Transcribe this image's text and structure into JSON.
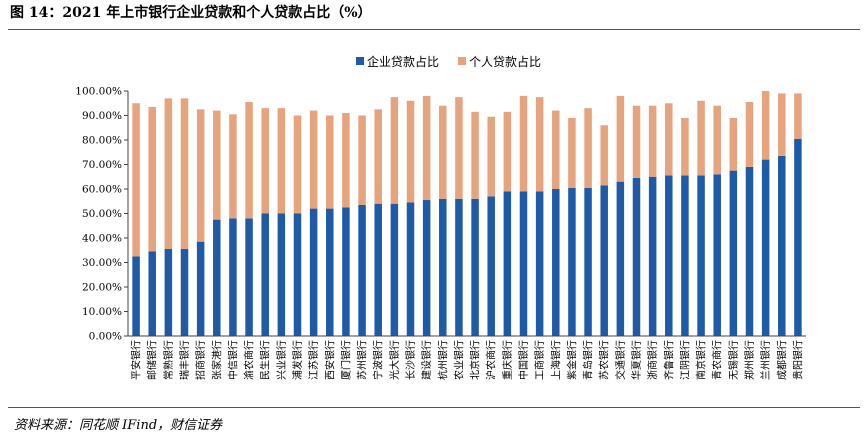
{
  "title": "图 14：2021 年上市银行企业贷款和个人贷款占比（%）",
  "source": "资料来源：同花顺 IFind，财信证券",
  "chart_data": {
    "type": "bar",
    "stacked": true,
    "title": "",
    "xlabel": "",
    "ylabel": "",
    "ylim": [
      0,
      100
    ],
    "yticks": [
      "0.00%",
      "10.00%",
      "20.00%",
      "30.00%",
      "40.00%",
      "50.00%",
      "60.00%",
      "70.00%",
      "80.00%",
      "90.00%",
      "100.00%"
    ],
    "legend_position": "top-center",
    "categories": [
      "平安银行",
      "邮储银行",
      "常熟银行",
      "瑞丰银行",
      "招商银行",
      "张家港行",
      "中信银行",
      "渝农商行",
      "民生银行",
      "兴业银行",
      "浦发银行",
      "江苏银行",
      "西安银行",
      "厦门银行",
      "苏州银行",
      "宁波银行",
      "光大银行",
      "长沙银行",
      "建设银行",
      "杭州银行",
      "农业银行",
      "北京银行",
      "沪农商行",
      "重庆银行",
      "中国银行",
      "工商银行",
      "上海银行",
      "紫金银行",
      "青岛银行",
      "苏农银行",
      "交通银行",
      "华夏银行",
      "浙商银行",
      "齐鲁银行",
      "江阴银行",
      "南京银行",
      "青农商行",
      "无锡银行",
      "郑州银行",
      "兰州银行",
      "成都银行",
      "贵阳银行"
    ],
    "series": [
      {
        "name": "企业贷款占比",
        "color": "#1f5aa6",
        "values": [
          32.5,
          34.5,
          35.5,
          35.5,
          38.5,
          47.5,
          48,
          48,
          50,
          50,
          50,
          52,
          52,
          52.5,
          53.5,
          54,
          54,
          54.5,
          55.5,
          56,
          56,
          56,
          57,
          59,
          59,
          59,
          60,
          60.5,
          60.5,
          61.5,
          63,
          64.5,
          65,
          65.5,
          65.5,
          65.5,
          66,
          67.5,
          69,
          72,
          73.5,
          80.5
        ]
      },
      {
        "name": "个人贷款占比",
        "color": "#e5a47e",
        "values": [
          62.5,
          59,
          61.5,
          61.5,
          54,
          44.5,
          42.5,
          47.5,
          43,
          43,
          40,
          40,
          38,
          38.5,
          36.5,
          38.5,
          43.5,
          41.5,
          42.5,
          38,
          41.5,
          35.5,
          32.5,
          32.5,
          39,
          38.5,
          32,
          28.5,
          32.5,
          24.5,
          35,
          29.5,
          29,
          29.5,
          23.5,
          30.5,
          28,
          21.5,
          26.5,
          28,
          25.5,
          18.5
        ]
      }
    ]
  }
}
